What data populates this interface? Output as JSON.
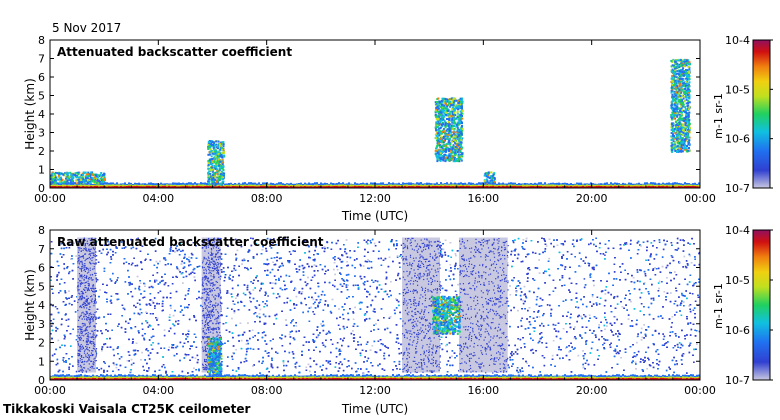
{
  "date_label": "5 Nov 2017",
  "footer": "Tikkakoski Vaisala CT25K ceilometer",
  "colors": {
    "palette": [
      "#c8c8e0",
      "#3040d0",
      "#2070f0",
      "#10c0e0",
      "#20d060",
      "#c0e020",
      "#f0d010",
      "#f08010",
      "#d01010",
      "#901060"
    ]
  },
  "chart_data": [
    {
      "type": "heatmap",
      "title": "Attenuated backscatter coefficient",
      "xlabel": "Time (UTC)",
      "ylabel": "Height (km)",
      "x_ticks": [
        "00:00",
        "04:00",
        "08:00",
        "12:00",
        "16:00",
        "20:00",
        "00:00"
      ],
      "xlim_hours": [
        0,
        24
      ],
      "y_ticks": [
        "0",
        "1",
        "2",
        "3",
        "4",
        "5",
        "6",
        "7",
        "8"
      ],
      "ylim": [
        0,
        8
      ],
      "colorbar": {
        "scale": "log",
        "unit_label": "m-1 sr-1",
        "tick_labels": [
          "10-4",
          "10-5",
          "10-6",
          "10-7"
        ],
        "range": [
          1e-07,
          0.0001
        ]
      },
      "features": [
        {
          "kind": "boundary-layer",
          "hours": [
            0,
            24
          ],
          "height_km": [
            0,
            0.3
          ]
        },
        {
          "kind": "cloud",
          "hours": [
            5.8,
            6.4
          ],
          "height_km": [
            0.2,
            2.6
          ]
        },
        {
          "kind": "cloud",
          "hours": [
            14.2,
            15.2
          ],
          "height_km": [
            1.5,
            4.9
          ]
        },
        {
          "kind": "cloud",
          "hours": [
            16.0,
            16.4
          ],
          "height_km": [
            0.3,
            0.9
          ]
        },
        {
          "kind": "cloud",
          "hours": [
            22.9,
            23.6
          ],
          "height_km": [
            2.0,
            7.0
          ]
        },
        {
          "kind": "cloud",
          "hours": [
            0.0,
            2.0
          ],
          "height_km": [
            0.3,
            0.9
          ]
        }
      ]
    },
    {
      "type": "heatmap",
      "title": "Raw attenuated backscatter coefficient",
      "xlabel": "Time (UTC)",
      "ylabel": "Height (km)",
      "x_ticks": [
        "00:00",
        "04:00",
        "08:00",
        "12:00",
        "16:00",
        "20:00",
        "00:00"
      ],
      "xlim_hours": [
        0,
        24
      ],
      "y_ticks": [
        "0",
        "1",
        "2",
        "3",
        "4",
        "5",
        "6",
        "7",
        "8"
      ],
      "ylim": [
        0,
        8
      ],
      "colorbar": {
        "scale": "log",
        "unit_label": "m-1 sr-1",
        "tick_labels": [
          "10-4",
          "10-5",
          "10-6",
          "10-7"
        ],
        "range": [
          1e-07,
          0.0001
        ]
      },
      "features": [
        {
          "kind": "noise",
          "hours": [
            0,
            24
          ],
          "height_km": [
            0.4,
            7.6
          ]
        },
        {
          "kind": "gap",
          "hours": [
            1.0,
            1.7
          ],
          "height_km": [
            0.4,
            7.6
          ]
        },
        {
          "kind": "gap",
          "hours": [
            5.6,
            6.3
          ],
          "height_km": [
            0.4,
            7.6
          ]
        },
        {
          "kind": "gap",
          "hours": [
            13.0,
            14.4
          ],
          "height_km": [
            0.4,
            7.6
          ]
        },
        {
          "kind": "gap",
          "hours": [
            15.1,
            16.9
          ],
          "height_km": [
            0.4,
            7.6
          ]
        },
        {
          "kind": "cloud",
          "hours": [
            14.1,
            15.1
          ],
          "height_km": [
            2.5,
            4.5
          ]
        },
        {
          "kind": "cloud",
          "hours": [
            5.8,
            6.3
          ],
          "height_km": [
            0.2,
            2.3
          ]
        },
        {
          "kind": "boundary-layer",
          "hours": [
            0,
            24
          ],
          "height_km": [
            0,
            0.3
          ]
        }
      ]
    }
  ]
}
